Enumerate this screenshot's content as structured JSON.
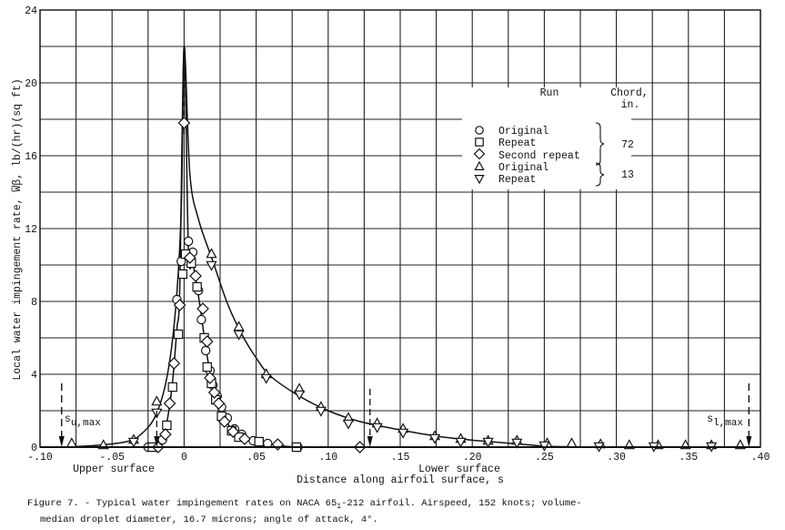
{
  "chart_data": {
    "type": "scatter",
    "title": "",
    "xlabel": "Distance along airfoil surface, s",
    "ylabel": "Local water impingement rate, W̅β, lb/(hr)(sq ft)",
    "xlim": [
      -0.1,
      0.4
    ],
    "ylim": [
      0,
      24
    ],
    "x_ticks": [
      "-.10",
      "-.05",
      "0",
      ".05",
      ".10",
      ".15",
      ".20",
      ".25",
      ".30",
      ".35",
      ".40"
    ],
    "y_ticks": [
      "0",
      "4",
      "8",
      "12",
      "16",
      "20",
      "24"
    ],
    "grid": true,
    "region_labels": {
      "upper": "Upper surface",
      "lower": "Lower surface"
    },
    "annotations": [
      {
        "text": "s_u,max",
        "sub": "u,max",
        "x": -0.085,
        "y": 0
      },
      {
        "text": "s_l,max",
        "sub": "l,max",
        "x": 0.392,
        "y": 0
      }
    ],
    "legend": {
      "header_run": "Run",
      "header_chord": "Chord,",
      "header_chord_unit": "in.",
      "entries": [
        {
          "marker": "circle",
          "label": "Original",
          "chord": "72"
        },
        {
          "marker": "square",
          "label": "Repeat",
          "chord": "72"
        },
        {
          "marker": "diamond",
          "label": "Second repeat",
          "chord": "72"
        },
        {
          "marker": "triangle-up",
          "label": "Original",
          "chord": "13"
        },
        {
          "marker": "triangle-down",
          "label": "Repeat",
          "chord": "13"
        }
      ],
      "group_values": [
        "72",
        "13"
      ]
    },
    "series": [
      {
        "name": "72 in. chord - Original",
        "marker": "circle",
        "points": [
          [
            -0.025,
            0
          ],
          [
            -0.02,
            0
          ],
          [
            -0.015,
            0.4
          ],
          [
            -0.005,
            8.1
          ],
          [
            -0.002,
            10.2
          ],
          [
            0.003,
            11.3
          ],
          [
            0.006,
            10.7
          ],
          [
            0.01,
            8.6
          ],
          [
            0.012,
            7.0
          ],
          [
            0.015,
            5.3
          ],
          [
            0.018,
            4.2
          ],
          [
            0.02,
            3.4
          ],
          [
            0.023,
            2.8
          ],
          [
            0.026,
            2.2
          ],
          [
            0.03,
            1.6
          ],
          [
            0.035,
            1.0
          ],
          [
            0.04,
            0.7
          ],
          [
            0.048,
            0.35
          ],
          [
            0.058,
            0.2
          ],
          [
            0.079,
            0
          ]
        ]
      },
      {
        "name": "72 in. chord - Repeat",
        "marker": "square",
        "points": [
          [
            -0.022,
            0
          ],
          [
            -0.012,
            1.2
          ],
          [
            -0.008,
            3.3
          ],
          [
            -0.004,
            6.2
          ],
          [
            -0.001,
            9.5
          ],
          [
            0.001,
            10.6
          ],
          [
            0.005,
            10.1
          ],
          [
            0.009,
            8.8
          ],
          [
            0.014,
            6.0
          ],
          [
            0.016,
            4.4
          ],
          [
            0.019,
            3.5
          ],
          [
            0.022,
            2.6
          ],
          [
            0.026,
            1.7
          ],
          [
            0.033,
            0.9
          ],
          [
            0.038,
            0.55
          ],
          [
            0.052,
            0.3
          ],
          [
            0.078,
            0
          ]
        ]
      },
      {
        "name": "72 in. chord - Second repeat",
        "marker": "diamond",
        "points": [
          [
            -0.018,
            0
          ],
          [
            -0.013,
            0.7
          ],
          [
            -0.01,
            2.4
          ],
          [
            -0.007,
            4.6
          ],
          [
            -0.003,
            7.8
          ],
          [
            0.0,
            17.8
          ],
          [
            0.004,
            10.4
          ],
          [
            0.008,
            9.4
          ],
          [
            0.013,
            7.6
          ],
          [
            0.016,
            5.8
          ],
          [
            0.018,
            3.8
          ],
          [
            0.021,
            3.0
          ],
          [
            0.024,
            2.4
          ],
          [
            0.028,
            1.4
          ],
          [
            0.034,
            0.85
          ],
          [
            0.042,
            0.45
          ],
          [
            0.065,
            0.15
          ],
          [
            0.122,
            0
          ]
        ]
      },
      {
        "name": "13 in. chord - Original",
        "marker": "triangle-up",
        "points": [
          [
            -0.078,
            0.2
          ],
          [
            -0.056,
            0.1
          ],
          [
            -0.035,
            0.4
          ],
          [
            -0.019,
            2.5
          ],
          [
            0.019,
            10.6
          ],
          [
            0.038,
            6.6
          ],
          [
            0.057,
            4.0
          ],
          [
            0.08,
            3.2
          ],
          [
            0.095,
            2.2
          ],
          [
            0.114,
            1.6
          ],
          [
            0.134,
            1.3
          ],
          [
            0.152,
            1.0
          ],
          [
            0.174,
            0.6
          ],
          [
            0.192,
            0.45
          ],
          [
            0.211,
            0.35
          ],
          [
            0.231,
            0.35
          ],
          [
            0.252,
            0.2
          ],
          [
            0.269,
            0.2
          ],
          [
            0.289,
            0.15
          ],
          [
            0.309,
            0.1
          ],
          [
            0.329,
            0.1
          ],
          [
            0.348,
            0.1
          ],
          [
            0.366,
            0.1
          ],
          [
            0.386,
            0.1
          ]
        ]
      },
      {
        "name": "13 in. chord - Repeat",
        "marker": "triangle-down",
        "points": [
          [
            -0.035,
            0.3
          ],
          [
            -0.019,
            1.9
          ],
          [
            0.019,
            10.0
          ],
          [
            0.038,
            6.2
          ],
          [
            0.057,
            3.8
          ],
          [
            0.08,
            2.9
          ],
          [
            0.095,
            2.0
          ],
          [
            0.114,
            1.3
          ],
          [
            0.134,
            1.1
          ],
          [
            0.152,
            0.8
          ],
          [
            0.174,
            0.5
          ],
          [
            0.192,
            0.3
          ],
          [
            0.211,
            0.3
          ],
          [
            0.231,
            0.25
          ],
          [
            0.25,
            0.1
          ],
          [
            0.288,
            0.05
          ],
          [
            0.326,
            0.05
          ],
          [
            0.366,
            0.05
          ]
        ]
      }
    ],
    "curves": [
      {
        "name": "13 in. chord fair curve",
        "points": [
          [
            -0.085,
            0
          ],
          [
            -0.06,
            0.1
          ],
          [
            -0.04,
            0.3
          ],
          [
            -0.03,
            0.7
          ],
          [
            -0.02,
            1.7
          ],
          [
            -0.012,
            3.8
          ],
          [
            -0.006,
            7.5
          ],
          [
            -0.002,
            13
          ],
          [
            0.0,
            22
          ],
          [
            0.004,
            15
          ],
          [
            0.01,
            12.5
          ],
          [
            0.02,
            10.2
          ],
          [
            0.03,
            7.9
          ],
          [
            0.04,
            6.2
          ],
          [
            0.05,
            4.9
          ],
          [
            0.06,
            3.9
          ],
          [
            0.08,
            2.8
          ],
          [
            0.1,
            2.0
          ],
          [
            0.12,
            1.45
          ],
          [
            0.14,
            1.1
          ],
          [
            0.16,
            0.8
          ],
          [
            0.18,
            0.55
          ],
          [
            0.2,
            0.38
          ],
          [
            0.22,
            0.25
          ],
          [
            0.24,
            0.12
          ],
          [
            0.25,
            0.05
          ],
          [
            0.27,
            0.02
          ],
          [
            0.3,
            0
          ],
          [
            0.4,
            0
          ]
        ]
      },
      {
        "name": "72 in. chord fair curve",
        "points": [
          [
            -0.025,
            0
          ],
          [
            -0.018,
            0.1
          ],
          [
            -0.014,
            0.7
          ],
          [
            -0.011,
            1.8
          ],
          [
            -0.008,
            3.6
          ],
          [
            -0.005,
            6.5
          ],
          [
            -0.003,
            8.8
          ],
          [
            0.0,
            22
          ],
          [
            0.003,
            10.8
          ],
          [
            0.006,
            10.1
          ],
          [
            0.009,
            8.8
          ],
          [
            0.012,
            7.2
          ],
          [
            0.015,
            5.5
          ],
          [
            0.018,
            4.1
          ],
          [
            0.021,
            3.1
          ],
          [
            0.024,
            2.3
          ],
          [
            0.028,
            1.6
          ],
          [
            0.033,
            1.0
          ],
          [
            0.04,
            0.6
          ],
          [
            0.05,
            0.3
          ],
          [
            0.06,
            0.15
          ],
          [
            0.07,
            0.05
          ],
          [
            0.079,
            0
          ]
        ]
      }
    ],
    "caption": {
      "line1": "Figure 7. - Typical water impingement rates on NACA 65",
      "line1_sub": "1",
      "line1_rest": "-212 airfoil.  Airspeed, 152 knots; volume-",
      "line2": "median droplet diameter, 16.7 microns; angle of attack, 4°."
    }
  }
}
